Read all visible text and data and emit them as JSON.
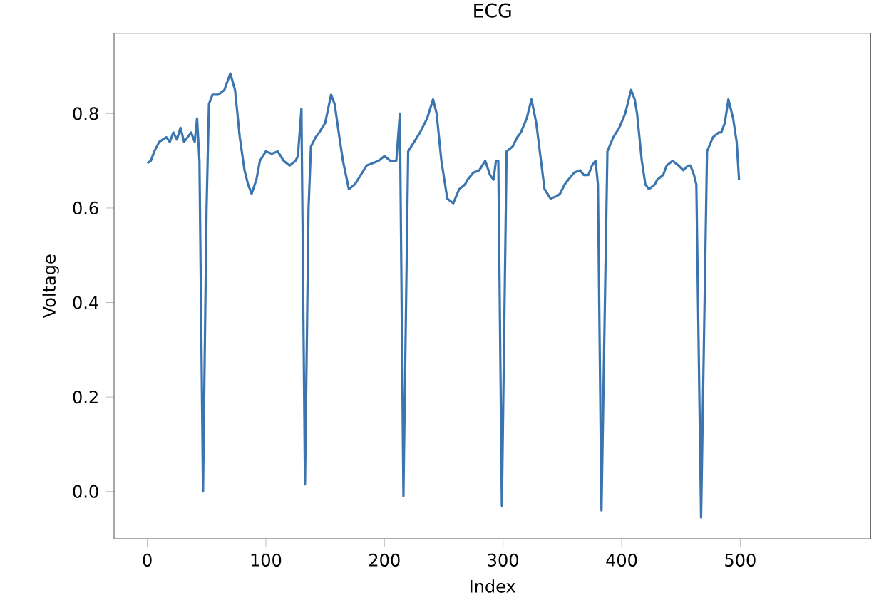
{
  "chart_data": {
    "type": "line",
    "title": "ECG",
    "xlabel": "Index",
    "ylabel": "Voltage",
    "x": [
      0,
      3,
      6,
      10,
      13,
      16,
      19,
      22,
      25,
      28,
      31,
      34,
      37,
      40,
      42,
      44,
      47,
      50,
      52,
      55,
      60,
      65,
      70,
      74,
      78,
      82,
      85,
      88,
      92,
      95,
      100,
      105,
      110,
      115,
      120,
      125,
      127,
      130,
      133,
      136,
      138,
      142,
      145,
      150,
      155,
      158,
      162,
      165,
      170,
      175,
      180,
      185,
      190,
      195,
      200,
      205,
      210,
      213,
      216,
      220,
      225,
      230,
      232,
      236,
      241,
      244,
      248,
      253,
      258,
      263,
      268,
      270,
      275,
      280,
      285,
      289,
      292,
      294,
      296,
      299,
      303,
      308,
      312,
      315,
      320,
      324,
      328,
      332,
      335,
      340,
      345,
      348,
      352,
      355,
      360,
      365,
      368,
      372,
      375,
      378,
      380,
      383,
      388,
      393,
      398,
      403,
      408,
      411,
      413,
      417,
      420,
      423,
      428,
      430,
      435,
      438,
      443,
      448,
      452,
      456,
      458,
      461,
      463,
      467,
      472,
      477,
      482,
      484,
      487,
      490,
      494,
      497,
      499
    ],
    "series": [
      {
        "color": "#3b75af",
        "values": [
          0.695,
          0.7,
          0.72,
          0.74,
          0.745,
          0.75,
          0.74,
          0.76,
          0.745,
          0.77,
          0.74,
          0.75,
          0.76,
          0.74,
          0.79,
          0.7,
          0.0,
          0.6,
          0.82,
          0.84,
          0.84,
          0.85,
          0.885,
          0.85,
          0.75,
          0.68,
          0.65,
          0.63,
          0.66,
          0.7,
          0.72,
          0.715,
          0.72,
          0.7,
          0.69,
          0.7,
          0.71,
          0.81,
          0.015,
          0.6,
          0.73,
          0.75,
          0.76,
          0.78,
          0.84,
          0.82,
          0.75,
          0.7,
          0.64,
          0.65,
          0.67,
          0.69,
          0.695,
          0.7,
          0.71,
          0.7,
          0.7,
          0.8,
          -0.01,
          0.72,
          0.74,
          0.76,
          0.77,
          0.79,
          0.83,
          0.8,
          0.7,
          0.62,
          0.61,
          0.64,
          0.65,
          0.66,
          0.675,
          0.68,
          0.7,
          0.67,
          0.66,
          0.7,
          0.7,
          -0.03,
          0.72,
          0.73,
          0.75,
          0.76,
          0.79,
          0.83,
          0.78,
          0.7,
          0.64,
          0.62,
          0.625,
          0.63,
          0.65,
          0.66,
          0.675,
          0.68,
          0.67,
          0.67,
          0.69,
          0.7,
          0.65,
          -0.04,
          0.72,
          0.75,
          0.77,
          0.8,
          0.85,
          0.83,
          0.8,
          0.7,
          0.65,
          0.64,
          0.65,
          0.66,
          0.67,
          0.69,
          0.7,
          0.69,
          0.68,
          0.69,
          0.69,
          0.67,
          0.65,
          -0.055,
          0.72,
          0.75,
          0.76,
          0.76,
          0.78,
          0.83,
          0.79,
          0.74,
          0.66
        ]
      }
    ],
    "xlim": [
      -28,
      610
    ],
    "ylim": [
      -0.1,
      0.97
    ],
    "xticks": [
      0,
      100,
      200,
      300,
      400,
      500
    ],
    "yticks": [
      {
        "value": 0.0,
        "label": "0.0"
      },
      {
        "value": 0.2,
        "label": "0.2"
      },
      {
        "value": 0.4,
        "label": "0.4"
      },
      {
        "value": 0.6,
        "label": "0.6"
      },
      {
        "value": 0.8,
        "label": "0.8"
      }
    ],
    "line_style": "solid",
    "marker": "none",
    "grid": false
  }
}
